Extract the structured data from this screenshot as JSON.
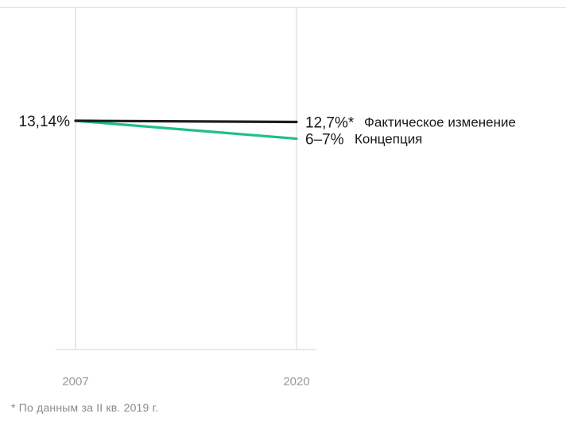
{
  "chart_data": {
    "type": "line",
    "x": [
      "2007",
      "2020"
    ],
    "ylim": [
      0,
      15
    ],
    "grid": true,
    "series": [
      {
        "name": "Фактическое изменение",
        "values": [
          13.14,
          12.7
        ],
        "start_label": "13,14%",
        "end_label": "12,7%*",
        "color": "#1e1e1e"
      },
      {
        "name": "Концепция",
        "values": [
          13.14,
          6.5
        ],
        "end_label": "6–7%",
        "color": "#1fbf8a"
      }
    ]
  },
  "footnote": "* По данным за II кв. 2019 г."
}
